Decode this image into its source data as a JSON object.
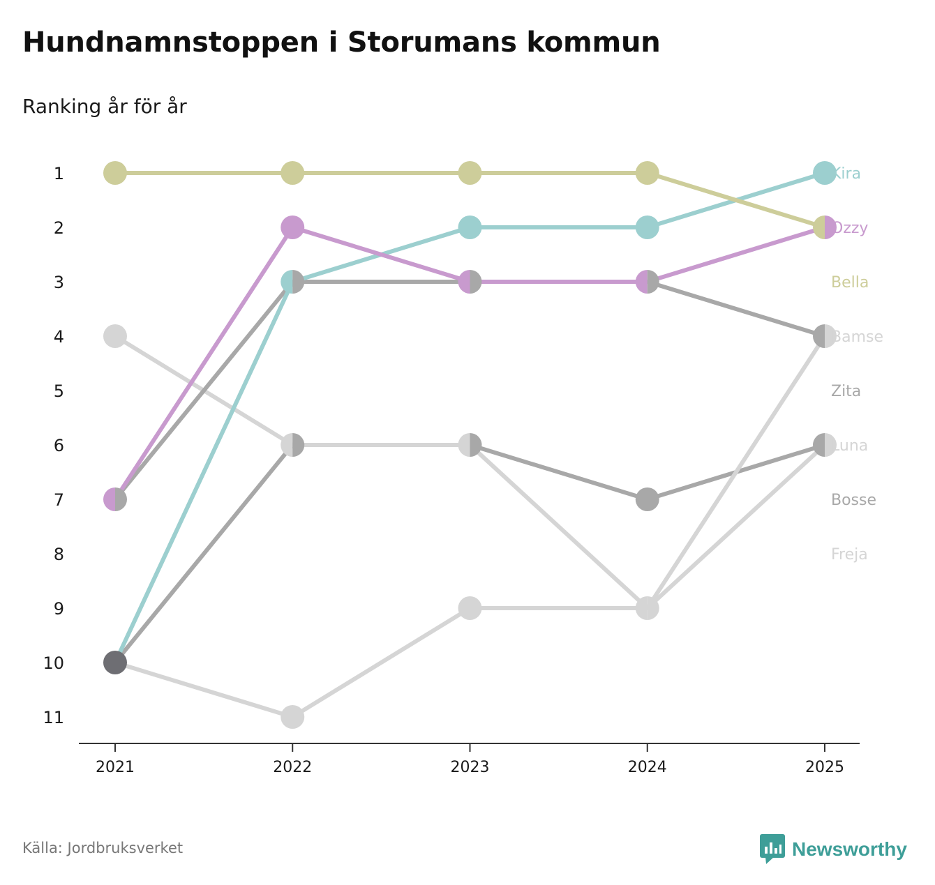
{
  "title": "Hundnamnstoppen i Storumans kommun",
  "subtitle": "Ranking år för år",
  "source": "Källa: Jordbruksverket",
  "brand": {
    "name": "Newsworthy",
    "icon": "bar-chart-speech-bubble-icon",
    "color": "#3e9e98"
  },
  "chart_data": {
    "type": "line",
    "title": "Hundnamnstoppen i Storumans kommun",
    "subtitle": "Ranking år för år",
    "xlabel": "",
    "ylabel": "",
    "x": [
      "2021",
      "2022",
      "2023",
      "2024",
      "2025"
    ],
    "y_ticks": [
      1,
      2,
      3,
      4,
      5,
      6,
      7,
      8,
      9,
      10,
      11
    ],
    "ylim": [
      11,
      1
    ],
    "y_inverted": true,
    "grid": false,
    "series": [
      {
        "name": "Freja",
        "color": "#d5d5d5",
        "values": [
          10,
          11,
          9,
          9,
          6
        ]
      },
      {
        "name": "Bosse",
        "color": "#a8a8a8",
        "values": [
          10,
          6,
          6,
          7,
          6
        ]
      },
      {
        "name": "Luna",
        "color": "#d5d5d5",
        "values": [
          4,
          6,
          6,
          9,
          4
        ]
      },
      {
        "name": "Zita",
        "color": "#a8a8a8",
        "values": [
          7,
          3,
          3,
          3,
          4
        ]
      },
      {
        "name": "Kira",
        "color": "#9ccfcf",
        "values": [
          10,
          3,
          2,
          2,
          1
        ]
      },
      {
        "name": "Ozzy",
        "color": "#c89ace",
        "values": [
          7,
          2,
          3,
          3,
          2
        ]
      },
      {
        "name": "Bella",
        "color": "#cdcd9a",
        "values": [
          1,
          1,
          1,
          1,
          2
        ]
      }
    ],
    "end_labels": [
      {
        "name": "Kira",
        "rank": 1,
        "color": "#9ccfcf"
      },
      {
        "name": "Ozzy",
        "rank": 2,
        "color": "#c89ace"
      },
      {
        "name": "Bella",
        "rank": 3,
        "color": "#cdcd9a"
      },
      {
        "name": "Bamse",
        "rank": 4,
        "color": "#d5d5d5"
      },
      {
        "name": "Zita",
        "rank": 5,
        "color": "#a8a8a8"
      },
      {
        "name": "Luna",
        "rank": 6,
        "color": "#d5d5d5"
      },
      {
        "name": "Bosse",
        "rank": 7,
        "color": "#a8a8a8"
      },
      {
        "name": "Freja",
        "rank": 8,
        "color": "#d5d5d5"
      }
    ],
    "shared_point_color": "#6e6e73"
  }
}
